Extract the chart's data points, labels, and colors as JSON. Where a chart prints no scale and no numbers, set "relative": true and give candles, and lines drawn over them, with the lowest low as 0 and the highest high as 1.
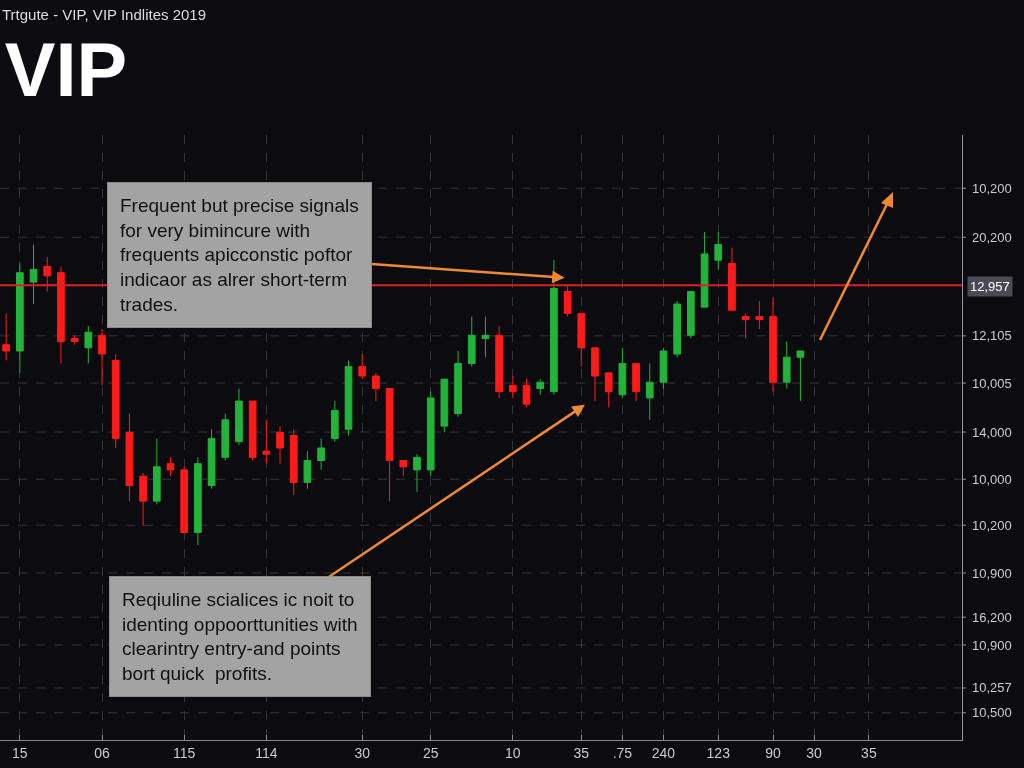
{
  "chart_data": {
    "type": "candlestick",
    "title": "VIP",
    "subtitle": "Trtgute - VIP, VIP Indlites 2019",
    "relative": true,
    "annotations": [
      "Frequent but precise signals\nfor very bimincure with\nfrequents apicconstic poftor\nindicaor as alrer short-term\ntrades.",
      "Reqiuline scialices ic noit to\nidenting oppoorttunities with\nclearintry entry-and points\nbort quick  profits.",
      "10,200",
      "20,200",
      "12,105",
      "10,005",
      "14,000",
      "10,000",
      "10,200",
      "10,900",
      "16,200",
      "10,900",
      "10,257",
      "10,500",
      "12,957"
    ],
    "categories": [
      null,
      "15",
      null,
      null,
      null,
      null,
      null,
      "06",
      null,
      null,
      null,
      null,
      null,
      "115",
      null,
      null,
      null,
      null,
      null,
      "114",
      null,
      null,
      null,
      null,
      null,
      null,
      "30",
      null,
      null,
      null,
      null,
      "25",
      null,
      null,
      null,
      null,
      null,
      "10",
      null,
      null,
      null,
      null,
      "35",
      null,
      null,
      ".75",
      null,
      null,
      "240",
      null,
      null,
      null,
      "123",
      null,
      null,
      null,
      "90",
      null,
      null,
      "30",
      null,
      null,
      null,
      "35",
      null,
      null,
      null,
      null,
      null,
      null
    ],
    "ohlc": [
      [
        0.64,
        0.74,
        0.59,
        0.62
      ],
      [
        0.62,
        0.9,
        0.55,
        0.87
      ],
      [
        0.84,
        0.96,
        0.77,
        0.88
      ],
      [
        0.89,
        0.92,
        0.81,
        0.86
      ],
      [
        0.87,
        0.89,
        0.58,
        0.65
      ],
      [
        0.66,
        0.67,
        0.64,
        0.65
      ],
      [
        0.63,
        0.7,
        0.58,
        0.68
      ],
      [
        0.67,
        0.69,
        0.51,
        0.61
      ],
      [
        0.59,
        0.61,
        0.31,
        0.34
      ],
      [
        0.36,
        0.42,
        0.14,
        0.19
      ],
      [
        0.22,
        0.23,
        0.06,
        0.14
      ],
      [
        0.14,
        0.34,
        0.13,
        0.25
      ],
      [
        0.26,
        0.28,
        0.22,
        0.24
      ],
      [
        0.24,
        0.25,
        0.04,
        0.04
      ],
      [
        0.04,
        0.28,
        0,
        0.26
      ],
      [
        0.19,
        0.37,
        0.18,
        0.34
      ],
      [
        0.28,
        0.42,
        0.27,
        0.4
      ],
      [
        0.33,
        0.5,
        0.32,
        0.46
      ],
      [
        0.46,
        0.46,
        0.27,
        0.28
      ],
      [
        0.3,
        0.4,
        0.26,
        0.29
      ],
      [
        0.36,
        0.38,
        0.26,
        0.31
      ],
      [
        0.35,
        0.37,
        0.16,
        0.2
      ],
      [
        0.2,
        0.3,
        0.18,
        0.27
      ],
      [
        0.27,
        0.34,
        0.24,
        0.31
      ],
      [
        0.34,
        0.46,
        0.33,
        0.43
      ],
      [
        0.37,
        0.59,
        0.35,
        0.57
      ],
      [
        0.57,
        0.61,
        0.53,
        0.54
      ],
      [
        0.54,
        0.55,
        0.46,
        0.5
      ],
      [
        0.5,
        0.5,
        0.14,
        0.27
      ],
      [
        0.27,
        0.27,
        0.22,
        0.25
      ],
      [
        0.24,
        0.29,
        0.17,
        0.28
      ],
      [
        0.24,
        0.49,
        0.22,
        0.47
      ],
      [
        0.38,
        0.53,
        0.36,
        0.53
      ],
      [
        0.42,
        0.62,
        0.41,
        0.58
      ],
      [
        0.58,
        0.73,
        0.57,
        0.67
      ],
      [
        0.66,
        0.73,
        0.6,
        0.67
      ],
      [
        0.67,
        0.7,
        0.47,
        0.49
      ],
      [
        0.51,
        0.54,
        0.47,
        0.49
      ],
      [
        0.51,
        0.53,
        0.44,
        0.45
      ],
      [
        0.5,
        0.53,
        0.48,
        0.52
      ],
      [
        0.49,
        0.91,
        0.48,
        0.82
      ],
      [
        0.81,
        0.83,
        0.73,
        0.74
      ],
      [
        0.74,
        0.74,
        0.57,
        0.63
      ],
      [
        0.63,
        0.63,
        0.46,
        0.54
      ],
      [
        0.55,
        0.55,
        0.44,
        0.49
      ],
      [
        0.48,
        0.63,
        0.47,
        0.58
      ],
      [
        0.58,
        0.58,
        0.46,
        0.49
      ],
      [
        0.47,
        0.58,
        0.4,
        0.52
      ],
      [
        0.52,
        0.63,
        0.5,
        0.62
      ],
      [
        0.61,
        0.78,
        0.6,
        0.77
      ],
      [
        0.67,
        0.81,
        0.66,
        0.81
      ],
      [
        0.76,
        1,
        0.76,
        0.93
      ],
      [
        0.91,
        1,
        0.88,
        0.96
      ],
      [
        0.9,
        0.95,
        0.75,
        0.75
      ],
      [
        0.73,
        0.74,
        0.66,
        0.72
      ],
      [
        0.73,
        0.78,
        0.69,
        0.72
      ],
      [
        0.73,
        0.79,
        0.49,
        0.52
      ],
      [
        0.52,
        0.65,
        0.5,
        0.6
      ],
      [
        0.6,
        0.62,
        0.46,
        0.62
      ],
      null,
      null,
      null,
      null,
      null,
      null,
      null,
      null,
      null,
      null,
      null
    ],
    "ref_lines": [
      {
        "axis": "y",
        "value": 0.83,
        "color": "#e02020"
      }
    ],
    "grid": true
  }
}
